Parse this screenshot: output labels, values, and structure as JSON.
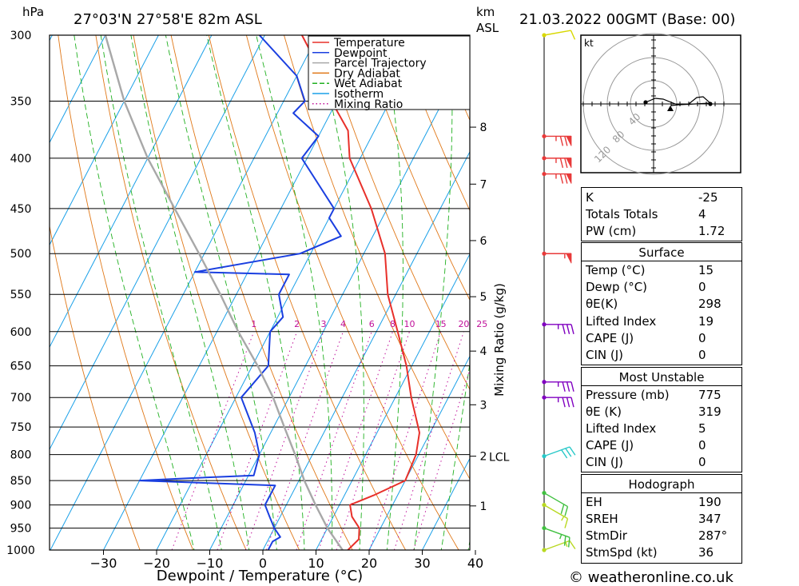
{
  "header": {
    "pressure_unit": "hPa",
    "location": "27°03'N  27°58'E  82m  ASL",
    "height_unit_km": "km",
    "height_unit_asl": "ASL",
    "datetime": "21.03.2022  00GMT  (Base: 00)"
  },
  "footer": {
    "copyright": "© weatheronline.co.uk"
  },
  "chart_data": {
    "type": "line",
    "subtype": "skew-T log-P",
    "xlabel": "Dewpoint / Temperature (°C)",
    "ylabel": "Mixing Ratio (g/kg)",
    "x_ticks": [
      -30,
      -20,
      -10,
      0,
      10,
      20,
      30,
      40
    ],
    "xlim": [
      -40,
      40
    ],
    "pressure_levels": [
      300,
      350,
      400,
      450,
      500,
      550,
      600,
      650,
      700,
      750,
      800,
      850,
      900,
      950,
      1000
    ],
    "height_ticks_km": [
      {
        "label": "8",
        "p": 372
      },
      {
        "label": "7",
        "p": 425
      },
      {
        "label": "6",
        "p": 485
      },
      {
        "label": "5",
        "p": 553
      },
      {
        "label": "4",
        "p": 628
      },
      {
        "label": "3",
        "p": 712
      },
      {
        "label": "2",
        "p": 803
      },
      {
        "label": "1",
        "p": 902
      }
    ],
    "lcl_label": "LCL",
    "lcl_p": 803,
    "mixing_ratio_labels": [
      "1",
      "2",
      "3",
      "4",
      "6",
      "8",
      "10",
      "15",
      "20",
      "25"
    ],
    "mixing_ratios": [
      1,
      2,
      3,
      4,
      6,
      8,
      10,
      15,
      20,
      25
    ],
    "legend": [
      "Temperature",
      "Dewpoint",
      "Parcel Trajectory",
      "Dry Adiabat",
      "Wet Adiabat",
      "Isotherm",
      "Mixing Ratio"
    ],
    "colors": {
      "temperature": "#e8302a",
      "dewpoint": "#1a3fe0",
      "parcel": "#a8a8a8",
      "dry_adiabat": "#e07818",
      "wet_adiabat": "#20b020",
      "isotherm": "#1aa0e8",
      "mixing_ratio": "#c0109a"
    },
    "series": [
      {
        "name": "Temperature",
        "points": [
          [
            1000,
            16
          ],
          [
            975,
            17
          ],
          [
            950,
            16
          ],
          [
            925,
            13.5
          ],
          [
            900,
            12
          ],
          [
            880,
            15.5
          ],
          [
            850,
            20
          ],
          [
            800,
            19.5
          ],
          [
            760,
            18
          ],
          [
            700,
            13
          ],
          [
            650,
            9
          ],
          [
            600,
            4
          ],
          [
            550,
            -1.5
          ],
          [
            500,
            -6
          ],
          [
            450,
            -13
          ],
          [
            400,
            -22
          ],
          [
            375,
            -25
          ],
          [
            350,
            -31
          ],
          [
            330,
            -35
          ],
          [
            300,
            -43
          ]
        ]
      },
      {
        "name": "Dewpoint",
        "points": [
          [
            1000,
            1
          ],
          [
            980,
            1
          ],
          [
            970,
            2
          ],
          [
            950,
            0
          ],
          [
            925,
            -2
          ],
          [
            900,
            -4
          ],
          [
            860,
            -4
          ],
          [
            850,
            -30
          ],
          [
            845,
            -20
          ],
          [
            840,
            -9
          ],
          [
            800,
            -10
          ],
          [
            760,
            -13
          ],
          [
            700,
            -19
          ],
          [
            650,
            -17
          ],
          [
            600,
            -20
          ],
          [
            580,
            -19
          ],
          [
            550,
            -22
          ],
          [
            525,
            -22
          ],
          [
            522,
            -40
          ],
          [
            500,
            -22
          ],
          [
            480,
            -16
          ],
          [
            460,
            -20
          ],
          [
            450,
            -20
          ],
          [
            400,
            -31
          ],
          [
            380,
            -30
          ],
          [
            360,
            -37
          ],
          [
            350,
            -36
          ],
          [
            330,
            -40
          ],
          [
            300,
            -51
          ]
        ]
      },
      {
        "name": "Parcel Trajectory",
        "points": [
          [
            1000,
            15
          ],
          [
            950,
            10
          ],
          [
            900,
            5.5
          ],
          [
            850,
            1
          ],
          [
            803,
            -3
          ],
          [
            750,
            -8
          ],
          [
            700,
            -13
          ],
          [
            650,
            -19
          ],
          [
            600,
            -26
          ],
          [
            550,
            -33
          ],
          [
            500,
            -41
          ],
          [
            450,
            -50
          ],
          [
            400,
            -60
          ],
          [
            350,
            -70
          ],
          [
            300,
            -80
          ]
        ]
      }
    ]
  },
  "hodograph": {
    "unit_label": "kt",
    "ring_labels": [
      "40",
      "80",
      "120"
    ]
  },
  "wind_barbs": [
    {
      "p": 1000,
      "color": "#b8d820",
      "dir": 250,
      "speed": 15
    },
    {
      "p": 950,
      "color": "#40c040",
      "dir": 290,
      "speed": 25
    },
    {
      "p": 900,
      "color": "#b8d820",
      "dir": 300,
      "speed": 15
    },
    {
      "p": 875,
      "color": "#40c040",
      "dir": 300,
      "speed": 20
    },
    {
      "p": 803,
      "color": "#28c8c8",
      "dir": 250,
      "speed": 30
    },
    {
      "p": 700,
      "color": "#8000c0",
      "dir": 270,
      "speed": 35
    },
    {
      "p": 675,
      "color": "#8000c0",
      "dir": 270,
      "speed": 35
    },
    {
      "p": 590,
      "color": "#8000c0",
      "dir": 270,
      "speed": 35
    },
    {
      "p": 500,
      "color": "#e83a3a",
      "dir": 270,
      "speed": 55
    },
    {
      "p": 415,
      "color": "#e83a3a",
      "dir": 270,
      "speed": 75
    },
    {
      "p": 400,
      "color": "#e83a3a",
      "dir": 270,
      "speed": 75
    },
    {
      "p": 380,
      "color": "#e83a3a",
      "dir": 270,
      "speed": 75
    },
    {
      "p": 300,
      "color": "#d8d800",
      "dir": 260,
      "speed": 10
    }
  ],
  "indices": [
    {
      "label": "K",
      "value": "-25"
    },
    {
      "label": "Totals Totals",
      "value": "4"
    },
    {
      "label": "PW (cm)",
      "value": "1.72"
    }
  ],
  "surface": {
    "title": "Surface",
    "rows": [
      {
        "label": "Temp (°C)",
        "value": "15"
      },
      {
        "label": "Dewp (°C)",
        "value": "0"
      },
      {
        "label": "θE(K)",
        "value": "298"
      },
      {
        "label": "Lifted Index",
        "value": "19"
      },
      {
        "label": "CAPE (J)",
        "value": "0"
      },
      {
        "label": "CIN (J)",
        "value": "0"
      }
    ]
  },
  "most_unstable": {
    "title": "Most Unstable",
    "rows": [
      {
        "label": "Pressure (mb)",
        "value": "775"
      },
      {
        "label": "θE (K)",
        "value": "319"
      },
      {
        "label": "Lifted Index",
        "value": "5"
      },
      {
        "label": "CAPE (J)",
        "value": "0"
      },
      {
        "label": "CIN (J)",
        "value": "0"
      }
    ]
  },
  "hodograph_table": {
    "title": "Hodograph",
    "rows": [
      {
        "label": "EH",
        "value": "190"
      },
      {
        "label": "SREH",
        "value": "347"
      },
      {
        "label": "StmDir",
        "value": "287°"
      },
      {
        "label": "StmSpd (kt)",
        "value": "36"
      }
    ]
  }
}
